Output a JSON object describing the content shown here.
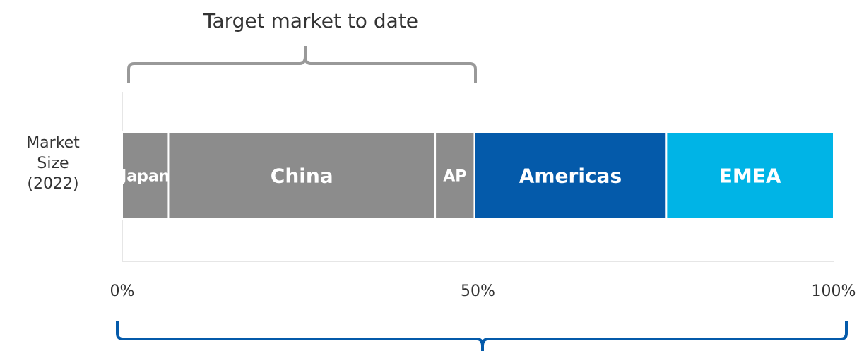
{
  "chart_data": {
    "type": "stacked_bar",
    "orientation": "horizontal",
    "annotation": "Target market to date",
    "categories": [
      "Market Size (2022)"
    ],
    "series": [
      {
        "name": "Japan",
        "color": "#8c8c8c",
        "values": [
          6.5
        ]
      },
      {
        "name": "China",
        "color": "#8c8c8c",
        "values": [
          37.5
        ]
      },
      {
        "name": "AP",
        "color": "#8c8c8c",
        "values": [
          5.5
        ]
      },
      {
        "name": "Americas",
        "color": "#045aaa",
        "values": [
          27
        ]
      },
      {
        "name": "EMEA",
        "color": "#00b4e6",
        "values": [
          23.5
        ]
      }
    ],
    "xlim": [
      0,
      100
    ],
    "xticks": [
      {
        "value": 0,
        "label": "0%"
      },
      {
        "value": 50,
        "label": "50%"
      },
      {
        "value": 100,
        "label": "100%"
      }
    ]
  }
}
